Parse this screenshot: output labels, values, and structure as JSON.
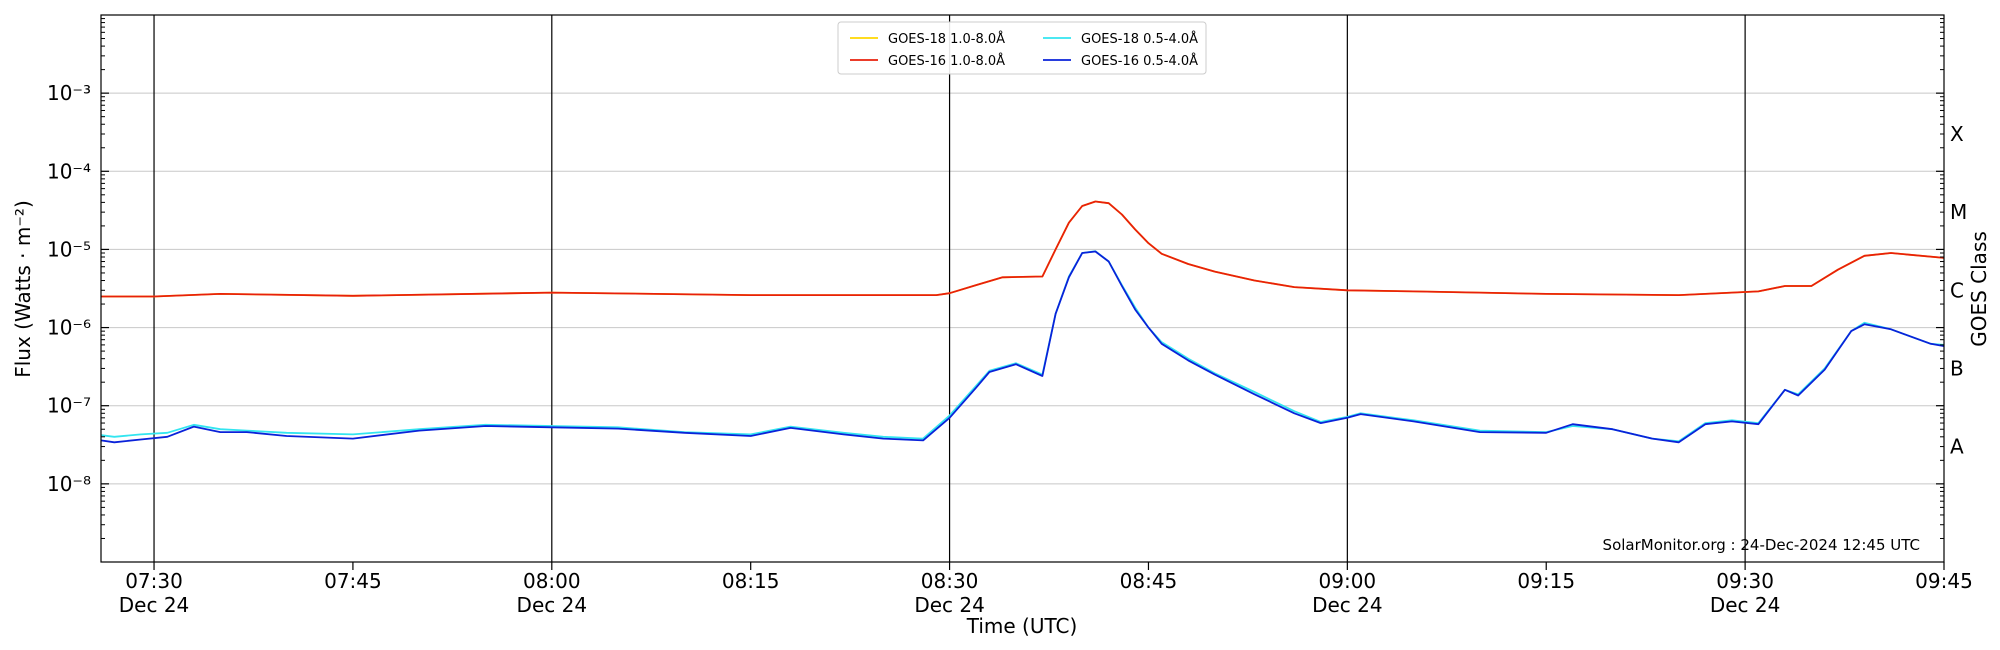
{
  "chart_data": {
    "type": "line",
    "xlabel": "Time (UTC)",
    "ylabel": "Flux (Watts · m⁻²)",
    "right_label": "GOES Class",
    "credit": "SolarMonitor.org : 24-Dec-2024 12:45 UTC",
    "x_range": [
      "07:26",
      "09:45"
    ],
    "ylim": [
      1e-09,
      0.01
    ],
    "y_scale": "log",
    "grid": "horizontal",
    "legend_position": "top-center",
    "x_ticks": [
      {
        "t": "07:30",
        "label": "07:30",
        "sub": "Dec 24"
      },
      {
        "t": "07:45",
        "label": "07:45",
        "sub": ""
      },
      {
        "t": "08:00",
        "label": "08:00",
        "sub": "Dec 24"
      },
      {
        "t": "08:15",
        "label": "08:15",
        "sub": ""
      },
      {
        "t": "08:30",
        "label": "08:30",
        "sub": "Dec 24"
      },
      {
        "t": "08:45",
        "label": "08:45",
        "sub": ""
      },
      {
        "t": "09:00",
        "label": "09:00",
        "sub": "Dec 24"
      },
      {
        "t": "09:15",
        "label": "09:15",
        "sub": ""
      },
      {
        "t": "09:30",
        "label": "09:30",
        "sub": "Dec 24"
      },
      {
        "t": "09:45",
        "label": "09:45",
        "sub": ""
      }
    ],
    "vertical_lines": [
      "07:30",
      "08:00",
      "08:30",
      "09:00",
      "09:30"
    ],
    "y_ticks": [
      {
        "value": 1e-08,
        "label": "10⁻⁸"
      },
      {
        "value": 1e-07,
        "label": "10⁻⁷"
      },
      {
        "value": 1e-06,
        "label": "10⁻⁶"
      },
      {
        "value": 1e-05,
        "label": "10⁻⁵"
      },
      {
        "value": 0.0001,
        "label": "10⁻⁴"
      },
      {
        "value": 0.001,
        "label": "10⁻³"
      }
    ],
    "goes_classes": [
      {
        "label": "A",
        "value": 3e-08
      },
      {
        "label": "B",
        "value": 3e-07
      },
      {
        "label": "C",
        "value": 3e-06
      },
      {
        "label": "M",
        "value": 3e-05
      },
      {
        "label": "X",
        "value": 0.0003
      }
    ],
    "series": [
      {
        "name": "GOES-18 1.0-8.0Å",
        "color": "#FFD700",
        "points": [
          [
            "07:26",
            2.5e-06
          ],
          [
            "07:30",
            2.5e-06
          ],
          [
            "07:35",
            2.7e-06
          ],
          [
            "07:45",
            2.55e-06
          ],
          [
            "08:00",
            2.8e-06
          ],
          [
            "08:15",
            2.6e-06
          ],
          [
            "08:25",
            2.6e-06
          ],
          [
            "08:29",
            2.6e-06
          ],
          [
            "08:30",
            2.75e-06
          ],
          [
            "08:32",
            3.5e-06
          ],
          [
            "08:34",
            4.4e-06
          ],
          [
            "08:37",
            4.5e-06
          ],
          [
            "08:38",
            1e-05
          ],
          [
            "08:39",
            2.2e-05
          ],
          [
            "08:40",
            3.6e-05
          ],
          [
            "08:41",
            4.1e-05
          ],
          [
            "08:42",
            3.9e-05
          ],
          [
            "08:43",
            2.8e-05
          ],
          [
            "08:44",
            1.8e-05
          ],
          [
            "08:45",
            1.2e-05
          ],
          [
            "08:46",
            8.8e-06
          ],
          [
            "08:48",
            6.5e-06
          ],
          [
            "08:50",
            5.2e-06
          ],
          [
            "08:53",
            4e-06
          ],
          [
            "08:56",
            3.3e-06
          ],
          [
            "09:00",
            3e-06
          ],
          [
            "09:05",
            2.9e-06
          ],
          [
            "09:15",
            2.7e-06
          ],
          [
            "09:25",
            2.6e-06
          ],
          [
            "09:29",
            2.8e-06
          ],
          [
            "09:31",
            2.9e-06
          ],
          [
            "09:33",
            3.4e-06
          ],
          [
            "09:35",
            3.4e-06
          ],
          [
            "09:37",
            5.5e-06
          ],
          [
            "09:39",
            8.3e-06
          ],
          [
            "09:41",
            9e-06
          ],
          [
            "09:45",
            7.8e-06
          ]
        ]
      },
      {
        "name": "GOES-16 1.0-8.0Å",
        "color": "#E8200B",
        "points": [
          [
            "07:26",
            2.5e-06
          ],
          [
            "07:30",
            2.5e-06
          ],
          [
            "07:35",
            2.7e-06
          ],
          [
            "07:45",
            2.55e-06
          ],
          [
            "08:00",
            2.8e-06
          ],
          [
            "08:15",
            2.6e-06
          ],
          [
            "08:25",
            2.6e-06
          ],
          [
            "08:29",
            2.6e-06
          ],
          [
            "08:30",
            2.75e-06
          ],
          [
            "08:32",
            3.5e-06
          ],
          [
            "08:34",
            4.4e-06
          ],
          [
            "08:37",
            4.5e-06
          ],
          [
            "08:38",
            1e-05
          ],
          [
            "08:39",
            2.2e-05
          ],
          [
            "08:40",
            3.6e-05
          ],
          [
            "08:41",
            4.1e-05
          ],
          [
            "08:42",
            3.9e-05
          ],
          [
            "08:43",
            2.8e-05
          ],
          [
            "08:44",
            1.8e-05
          ],
          [
            "08:45",
            1.2e-05
          ],
          [
            "08:46",
            8.8e-06
          ],
          [
            "08:48",
            6.5e-06
          ],
          [
            "08:50",
            5.2e-06
          ],
          [
            "08:53",
            4e-06
          ],
          [
            "08:56",
            3.3e-06
          ],
          [
            "09:00",
            3e-06
          ],
          [
            "09:05",
            2.9e-06
          ],
          [
            "09:15",
            2.7e-06
          ],
          [
            "09:25",
            2.6e-06
          ],
          [
            "09:29",
            2.8e-06
          ],
          [
            "09:31",
            2.9e-06
          ],
          [
            "09:33",
            3.4e-06
          ],
          [
            "09:35",
            3.4e-06
          ],
          [
            "09:37",
            5.5e-06
          ],
          [
            "09:39",
            8.3e-06
          ],
          [
            "09:41",
            9e-06
          ],
          [
            "09:45",
            7.8e-06
          ]
        ]
      },
      {
        "name": "GOES-18 0.5-4.0Å",
        "color": "#33E5F0",
        "points": [
          [
            "07:26",
            4.2e-08
          ],
          [
            "07:27",
            4e-08
          ],
          [
            "07:29",
            4.3e-08
          ],
          [
            "07:31",
            4.5e-08
          ],
          [
            "07:33",
            5.7e-08
          ],
          [
            "07:35",
            5e-08
          ],
          [
            "07:37",
            4.8e-08
          ],
          [
            "07:40",
            4.5e-08
          ],
          [
            "07:45",
            4.3e-08
          ],
          [
            "07:50",
            5e-08
          ],
          [
            "07:55",
            5.7e-08
          ],
          [
            "08:00",
            5.5e-08
          ],
          [
            "08:05",
            5.3e-08
          ],
          [
            "08:10",
            4.6e-08
          ],
          [
            "08:15",
            4.3e-08
          ],
          [
            "08:18",
            5.4e-08
          ],
          [
            "08:22",
            4.5e-08
          ],
          [
            "08:25",
            4e-08
          ],
          [
            "08:28",
            3.8e-08
          ],
          [
            "08:30",
            7.5e-08
          ],
          [
            "08:32",
            1.8e-07
          ],
          [
            "08:33",
            2.8e-07
          ],
          [
            "08:35",
            3.5e-07
          ],
          [
            "08:37",
            2.5e-07
          ],
          [
            "08:38",
            1.5e-06
          ],
          [
            "08:39",
            4.5e-06
          ],
          [
            "08:40",
            9e-06
          ],
          [
            "08:41",
            9.5e-06
          ],
          [
            "08:42",
            7e-06
          ],
          [
            "08:43",
            3.5e-06
          ],
          [
            "08:44",
            1.8e-06
          ],
          [
            "08:45",
            1e-06
          ],
          [
            "08:46",
            6.5e-07
          ],
          [
            "08:48",
            4e-07
          ],
          [
            "08:50",
            2.6e-07
          ],
          [
            "08:53",
            1.5e-07
          ],
          [
            "08:56",
            8.5e-08
          ],
          [
            "08:58",
            6.2e-08
          ],
          [
            "09:00",
            7.2e-08
          ],
          [
            "09:01",
            8e-08
          ],
          [
            "09:05",
            6.5e-08
          ],
          [
            "09:10",
            4.8e-08
          ],
          [
            "09:15",
            4.6e-08
          ],
          [
            "09:17",
            5.5e-08
          ],
          [
            "09:20",
            5e-08
          ],
          [
            "09:23",
            3.8e-08
          ],
          [
            "09:25",
            3.5e-08
          ],
          [
            "09:27",
            6e-08
          ],
          [
            "09:29",
            6.5e-08
          ],
          [
            "09:31",
            6e-08
          ],
          [
            "09:33",
            1.6e-07
          ],
          [
            "09:34",
            1.4e-07
          ],
          [
            "09:36",
            3e-07
          ],
          [
            "09:38",
            9e-07
          ],
          [
            "09:39",
            1.15e-06
          ],
          [
            "09:41",
            9.5e-07
          ],
          [
            "09:44",
            6.2e-07
          ],
          [
            "09:45",
            6e-07
          ]
        ]
      },
      {
        "name": "GOES-16 0.5-4.0Å",
        "color": "#0A22D9",
        "points": [
          [
            "07:26",
            3.6e-08
          ],
          [
            "07:27",
            3.4e-08
          ],
          [
            "07:29",
            3.7e-08
          ],
          [
            "07:31",
            4e-08
          ],
          [
            "07:33",
            5.4e-08
          ],
          [
            "07:35",
            4.6e-08
          ],
          [
            "07:37",
            4.6e-08
          ],
          [
            "07:40",
            4.1e-08
          ],
          [
            "07:45",
            3.8e-08
          ],
          [
            "07:50",
            4.8e-08
          ],
          [
            "07:55",
            5.5e-08
          ],
          [
            "08:00",
            5.3e-08
          ],
          [
            "08:05",
            5.1e-08
          ],
          [
            "08:10",
            4.5e-08
          ],
          [
            "08:15",
            4.1e-08
          ],
          [
            "08:18",
            5.2e-08
          ],
          [
            "08:22",
            4.3e-08
          ],
          [
            "08:25",
            3.8e-08
          ],
          [
            "08:28",
            3.6e-08
          ],
          [
            "08:30",
            7e-08
          ],
          [
            "08:32",
            1.7e-07
          ],
          [
            "08:33",
            2.7e-07
          ],
          [
            "08:35",
            3.4e-07
          ],
          [
            "08:37",
            2.4e-07
          ],
          [
            "08:38",
            1.5e-06
          ],
          [
            "08:39",
            4.4e-06
          ],
          [
            "08:40",
            9e-06
          ],
          [
            "08:41",
            9.4e-06
          ],
          [
            "08:42",
            7e-06
          ],
          [
            "08:43",
            3.4e-06
          ],
          [
            "08:44",
            1.7e-06
          ],
          [
            "08:45",
            1e-06
          ],
          [
            "08:46",
            6.2e-07
          ],
          [
            "08:48",
            3.8e-07
          ],
          [
            "08:50",
            2.5e-07
          ],
          [
            "08:53",
            1.4e-07
          ],
          [
            "08:56",
            8e-08
          ],
          [
            "08:58",
            6e-08
          ],
          [
            "09:00",
            7e-08
          ],
          [
            "09:01",
            7.8e-08
          ],
          [
            "09:05",
            6.3e-08
          ],
          [
            "09:10",
            4.6e-08
          ],
          [
            "09:15",
            4.5e-08
          ],
          [
            "09:17",
            5.8e-08
          ],
          [
            "09:20",
            5e-08
          ],
          [
            "09:23",
            3.8e-08
          ],
          [
            "09:25",
            3.4e-08
          ],
          [
            "09:27",
            5.8e-08
          ],
          [
            "09:29",
            6.3e-08
          ],
          [
            "09:31",
            5.8e-08
          ],
          [
            "09:33",
            1.6e-07
          ],
          [
            "09:34",
            1.35e-07
          ],
          [
            "09:36",
            2.9e-07
          ],
          [
            "09:38",
            9e-07
          ],
          [
            "09:39",
            1.1e-06
          ],
          [
            "09:41",
            9.5e-07
          ],
          [
            "09:44",
            6.2e-07
          ],
          [
            "09:45",
            5.8e-07
          ]
        ]
      }
    ]
  }
}
